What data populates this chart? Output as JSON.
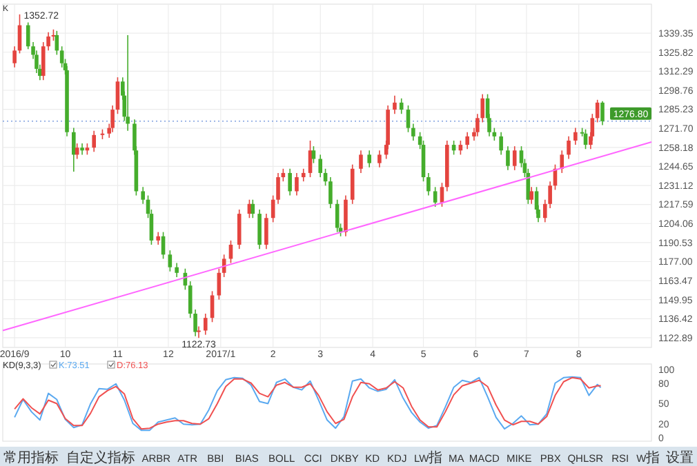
{
  "chart_data": [
    {
      "type": "candlestick",
      "xlim": [
        "2016-08-25",
        "2017-09-13"
      ],
      "ylim": [
        1116,
        1360
      ],
      "xticks": [
        {
          "value": "2016-09-01",
          "label": "2016/9"
        },
        {
          "value": "2016-10-01",
          "label": "10"
        },
        {
          "value": "2016-11-01",
          "label": "11"
        },
        {
          "value": "2016-12-01",
          "label": "12"
        },
        {
          "value": "2017-01-01",
          "label": "2017/1"
        },
        {
          "value": "2017-02-01",
          "label": "2"
        },
        {
          "value": "2017-03-01",
          "label": "3"
        },
        {
          "value": "2017-04-01",
          "label": "4"
        },
        {
          "value": "2017-05-01",
          "label": "5"
        },
        {
          "value": "2017-06-01",
          "label": "6"
        },
        {
          "value": "2017-07-01",
          "label": "7"
        },
        {
          "value": "2017-08-01",
          "label": "8"
        }
      ],
      "yticks": [
        1122.89,
        1136.42,
        1149.95,
        1163.47,
        {
          "value": 1177,
          "label": "1177.00"
        },
        1190.53,
        1204.06,
        1217.59,
        1231.12,
        1244.65,
        1258.18,
        {
          "value": 1271.7,
          "label": "1271.70"
        },
        1285.23,
        1298.76,
        1312.29,
        1325.82,
        1339.35
      ],
      "grid": true,
      "x": [
        "2016-09-01",
        "2016-09-04",
        "2016-09-09",
        "2016-09-12",
        "2016-09-14",
        "2016-09-16",
        "2016-09-18",
        "2016-09-21",
        "2016-09-24",
        "2016-09-26",
        "2016-09-29",
        "2016-10-01",
        "2016-10-02",
        "2016-10-06",
        "2016-10-08",
        "2016-10-11",
        "2016-10-14",
        "2016-10-18",
        "2016-10-23",
        "2016-10-27",
        "2016-10-29",
        "2016-11-01",
        "2016-11-04",
        "2016-11-05",
        "2016-11-07",
        "2016-11-11",
        "2016-11-12",
        "2016-11-16",
        "2016-11-19",
        "2016-11-21",
        "2016-11-25",
        "2016-11-28",
        "2016-12-02",
        "2016-12-06",
        "2016-12-11",
        "2016-12-14",
        "2016-12-17",
        "2016-12-19",
        "2016-12-23",
        "2016-12-27",
        "2016-12-31",
        "2017-01-03",
        "2017-01-07",
        "2017-01-12",
        "2017-01-18",
        "2017-01-20",
        "2017-01-24",
        "2017-01-28",
        "2017-02-01",
        "2017-02-04",
        "2017-02-07",
        "2017-02-11",
        "2017-02-15",
        "2017-02-19",
        "2017-02-23",
        "2017-02-25",
        "2017-03-01",
        "2017-03-04",
        "2017-03-07",
        "2017-03-11",
        "2017-03-13",
        "2017-03-16",
        "2017-03-20",
        "2017-03-25",
        "2017-03-30",
        "2017-04-05",
        "2017-04-09",
        "2017-04-10",
        "2017-04-14",
        "2017-04-18",
        "2017-04-22",
        "2017-04-25",
        "2017-04-29",
        "2017-05-01",
        "2017-05-04",
        "2017-05-08",
        "2017-05-12",
        "2017-05-15",
        "2017-05-19",
        "2017-05-23",
        "2017-05-27",
        "2017-05-31",
        "2017-06-02",
        "2017-06-05",
        "2017-06-08",
        "2017-06-09",
        "2017-06-12",
        "2017-06-16",
        "2017-06-20",
        "2017-06-24",
        "2017-06-28",
        "2017-06-30",
        "2017-07-02",
        "2017-07-04",
        "2017-07-07",
        "2017-07-08",
        "2017-07-12",
        "2017-07-15",
        "2017-07-18",
        "2017-07-22",
        "2017-07-26",
        "2017-07-30",
        "2017-08-03",
        "2017-08-05",
        "2017-08-08",
        "2017-08-09",
        "2017-08-12",
        "2017-08-15"
      ],
      "ohlc": [
        [
          1318,
          1330,
          1315,
          1327
        ],
        [
          1327,
          1352.72,
          1325,
          1345
        ],
        [
          1345,
          1347,
          1328,
          1330
        ],
        [
          1330,
          1333,
          1321,
          1324
        ],
        [
          1324,
          1327,
          1311,
          1314
        ],
        [
          1314,
          1317,
          1306,
          1309
        ],
        [
          1309,
          1333,
          1306,
          1330
        ],
        [
          1330,
          1340,
          1327,
          1337
        ],
        [
          1337,
          1342,
          1334,
          1338
        ],
        [
          1338,
          1341,
          1324,
          1327
        ],
        [
          1327,
          1330,
          1315,
          1318
        ],
        [
          1318,
          1321,
          1310,
          1313
        ],
        [
          1313,
          1316,
          1266,
          1269
        ],
        [
          1269,
          1272,
          1241,
          1253
        ],
        [
          1253,
          1261,
          1250,
          1258
        ],
        [
          1258,
          1261,
          1253,
          1256
        ],
        [
          1256,
          1261,
          1253,
          1258
        ],
        [
          1258,
          1270,
          1255,
          1267
        ],
        [
          1267,
          1271,
          1264,
          1268
        ],
        [
          1268,
          1275,
          1265,
          1272
        ],
        [
          1272,
          1288,
          1269,
          1285
        ],
        [
          1285,
          1308,
          1282,
          1305
        ],
        [
          1305,
          1308,
          1292,
          1295
        ],
        [
          1295,
          1298,
          1277,
          1280
        ],
        [
          1280,
          1338,
          1270,
          1275
        ],
        [
          1275,
          1278,
          1253,
          1256
        ],
        [
          1256,
          1259,
          1224,
          1227
        ],
        [
          1227,
          1230,
          1218,
          1221
        ],
        [
          1221,
          1224,
          1208,
          1211
        ],
        [
          1211,
          1214,
          1189,
          1192
        ],
        [
          1192,
          1198,
          1189,
          1195
        ],
        [
          1195,
          1198,
          1179,
          1182
        ],
        [
          1182,
          1185,
          1170,
          1173
        ],
        [
          1173,
          1176,
          1166,
          1169
        ],
        [
          1169,
          1172,
          1157,
          1160
        ],
        [
          1160,
          1163,
          1137,
          1140
        ],
        [
          1140,
          1143,
          1124,
          1127
        ],
        [
          1127,
          1131,
          1122.73,
          1128
        ],
        [
          1128,
          1140,
          1125,
          1137
        ],
        [
          1137,
          1156,
          1134,
          1153
        ],
        [
          1153,
          1172,
          1150,
          1169
        ],
        [
          1169,
          1182,
          1166,
          1179
        ],
        [
          1179,
          1192,
          1176,
          1189
        ],
        [
          1189,
          1214,
          1186,
          1211
        ],
        [
          1211,
          1221,
          1208,
          1218
        ],
        [
          1218,
          1221,
          1208,
          1211
        ],
        [
          1211,
          1214,
          1186,
          1189
        ],
        [
          1189,
          1211,
          1186,
          1208
        ],
        [
          1208,
          1224,
          1205,
          1221
        ],
        [
          1221,
          1240,
          1218,
          1237
        ],
        [
          1237,
          1243,
          1234,
          1240
        ],
        [
          1240,
          1243,
          1224,
          1227
        ],
        [
          1227,
          1240,
          1224,
          1237
        ],
        [
          1237,
          1243,
          1234,
          1240
        ],
        [
          1240,
          1263,
          1237,
          1256
        ],
        [
          1256,
          1259,
          1247,
          1250
        ],
        [
          1250,
          1253,
          1237,
          1240
        ],
        [
          1240,
          1243,
          1231,
          1234
        ],
        [
          1234,
          1237,
          1215,
          1218
        ],
        [
          1218,
          1221,
          1198,
          1201
        ],
        [
          1201,
          1204,
          1195,
          1198
        ],
        [
          1198,
          1224,
          1195,
          1221
        ],
        [
          1221,
          1246,
          1218,
          1243
        ],
        [
          1243,
          1256,
          1240,
          1253
        ],
        [
          1253,
          1256,
          1244,
          1247
        ],
        [
          1247,
          1256,
          1244,
          1253
        ],
        [
          1253,
          1263,
          1250,
          1260
        ],
        [
          1260,
          1288,
          1257,
          1285
        ],
        [
          1285,
          1295,
          1282,
          1290
        ],
        [
          1290,
          1293,
          1282,
          1285
        ],
        [
          1285,
          1288,
          1269,
          1272
        ],
        [
          1272,
          1275,
          1263,
          1266
        ],
        [
          1266,
          1269,
          1257,
          1260
        ],
        [
          1260,
          1263,
          1234,
          1237
        ],
        [
          1237,
          1240,
          1224,
          1227
        ],
        [
          1227,
          1230,
          1216,
          1219
        ],
        [
          1219,
          1233,
          1216,
          1230
        ],
        [
          1230,
          1263,
          1227,
          1260
        ],
        [
          1260,
          1263,
          1253,
          1256
        ],
        [
          1256,
          1263,
          1253,
          1260
        ],
        [
          1260,
          1269,
          1257,
          1266
        ],
        [
          1266,
          1272,
          1263,
          1269
        ],
        [
          1269,
          1282,
          1266,
          1279
        ],
        [
          1279,
          1296,
          1276,
          1293
        ],
        [
          1293,
          1296,
          1276,
          1279
        ],
        [
          1279,
          1282,
          1266,
          1269
        ],
        [
          1269,
          1272,
          1263,
          1266
        ],
        [
          1266,
          1269,
          1253,
          1256
        ],
        [
          1256,
          1259,
          1242,
          1245
        ],
        [
          1245,
          1259,
          1242,
          1256
        ],
        [
          1256,
          1259,
          1244,
          1247
        ],
        [
          1247,
          1250,
          1237,
          1240
        ],
        [
          1240,
          1243,
          1218,
          1221
        ],
        [
          1221,
          1230,
          1218,
          1227
        ],
        [
          1227,
          1230,
          1211,
          1214
        ],
        [
          1214,
          1217,
          1205,
          1208
        ],
        [
          1208,
          1221,
          1205,
          1218
        ],
        [
          1218,
          1234,
          1215,
          1231
        ],
        [
          1231,
          1246,
          1228,
          1243
        ],
        [
          1243,
          1256,
          1240,
          1253
        ],
        [
          1253,
          1266,
          1250,
          1263
        ],
        [
          1263,
          1272,
          1260,
          1269
        ],
        [
          1269,
          1272,
          1266,
          1268
        ],
        [
          1268,
          1271,
          1257,
          1260
        ],
        [
          1260,
          1269,
          1257,
          1266
        ],
        [
          1266,
          1282,
          1263,
          1279
        ],
        [
          1279,
          1292,
          1276,
          1290
        ],
        [
          1290,
          1291,
          1274,
          1276.8
        ]
      ],
      "series": [
        {
          "type": "line",
          "color": "#ff66ff",
          "x": [
            "2016-08-25",
            "2017-09-13"
          ],
          "values": [
            1128,
            1262
          ]
        }
      ],
      "ref_lines": [
        {
          "axis": "y",
          "value": 1276.8,
          "label": "1276.80",
          "color": "#7fa0e0",
          "line_style": "dotted"
        }
      ],
      "annotations": [
        "K",
        {
          "text": "1352.72",
          "x": "2016-09-04",
          "y": 1352.72
        },
        {
          "text": "1122.73",
          "x": "2016-12-19",
          "y": 1122.73
        }
      ]
    },
    {
      "type": "line",
      "title": "KD(9,3,3)",
      "xlim": [
        "2016-08-25",
        "2017-09-13"
      ],
      "ylim": [
        -5,
        108
      ],
      "tick_labels": "y",
      "legend": "top left",
      "yticks": [
        0,
        20,
        50,
        80,
        100
      ],
      "x": [
        "2016-09-01",
        "2016-09-06",
        "2016-09-11",
        "2016-09-16",
        "2016-09-21",
        "2016-09-26",
        "2016-10-01",
        "2016-10-06",
        "2016-10-11",
        "2016-10-16",
        "2016-10-21",
        "2016-10-26",
        "2016-10-31",
        "2016-11-05",
        "2016-11-10",
        "2016-11-15",
        "2016-11-20",
        "2016-11-25",
        "2016-11-30",
        "2016-12-05",
        "2016-12-10",
        "2016-12-15",
        "2016-12-20",
        "2016-12-25",
        "2016-12-30",
        "2017-01-04",
        "2017-01-09",
        "2017-01-14",
        "2017-01-19",
        "2017-01-24",
        "2017-01-29",
        "2017-02-03",
        "2017-02-08",
        "2017-02-13",
        "2017-02-18",
        "2017-02-23",
        "2017-02-28",
        "2017-03-05",
        "2017-03-10",
        "2017-03-15",
        "2017-03-20",
        "2017-03-25",
        "2017-03-30",
        "2017-04-04",
        "2017-04-09",
        "2017-04-14",
        "2017-04-19",
        "2017-04-24",
        "2017-04-29",
        "2017-05-04",
        "2017-05-09",
        "2017-05-14",
        "2017-05-19",
        "2017-05-24",
        "2017-05-29",
        "2017-06-03",
        "2017-06-08",
        "2017-06-13",
        "2017-06-18",
        "2017-06-23",
        "2017-06-28",
        "2017-07-03",
        "2017-07-08",
        "2017-07-13",
        "2017-07-18",
        "2017-07-23",
        "2017-07-28",
        "2017-08-02",
        "2017-08-07",
        "2017-08-12",
        "2017-08-14"
      ],
      "series": [
        {
          "name": "K:73.51",
          "color": "#5aa9f0",
          "values": [
            30,
            56,
            38,
            26,
            65,
            56,
            27,
            15,
            19,
            50,
            72,
            71,
            79,
            55,
            21,
            11,
            11,
            23,
            26,
            29,
            20,
            19,
            20,
            41,
            69,
            85,
            88,
            87,
            77,
            53,
            50,
            81,
            86,
            74,
            70,
            83,
            55,
            26,
            14,
            31,
            83,
            86,
            73,
            68,
            71,
            85,
            58,
            37,
            23,
            14,
            18,
            45,
            74,
            84,
            81,
            88,
            60,
            30,
            13,
            21,
            32,
            19,
            20,
            35,
            80,
            88,
            89,
            88,
            62,
            78,
            73.51
          ]
        },
        {
          "name": "D:76.13",
          "color": "#f05050",
          "values": [
            42,
            57,
            44,
            35,
            55,
            50,
            28,
            18,
            18,
            36,
            60,
            69,
            75,
            64,
            28,
            13,
            14,
            20,
            23,
            25,
            25,
            21,
            20,
            28,
            50,
            75,
            86,
            86,
            80,
            65,
            60,
            77,
            81,
            74,
            74,
            79,
            62,
            38,
            21,
            27,
            60,
            81,
            79,
            70,
            73,
            82,
            73,
            46,
            26,
            16,
            16,
            38,
            63,
            76,
            80,
            84,
            75,
            48,
            26,
            19,
            24,
            24,
            20,
            31,
            62,
            82,
            88,
            86,
            73,
            76,
            76.13
          ]
        }
      ]
    },
    {
      "type": "other",
      "annotations": [
        "常用指标",
        "自定义指标",
        "ARBR",
        "ATR",
        "BBI",
        "BIAS",
        "BOLL",
        "CCI",
        "DKBY",
        "KD",
        "KDJ",
        "LW指",
        "MA",
        "MACD",
        "MIKE",
        "PBX",
        "QHLSR",
        "RSI",
        "W指",
        "设置"
      ]
    }
  ]
}
